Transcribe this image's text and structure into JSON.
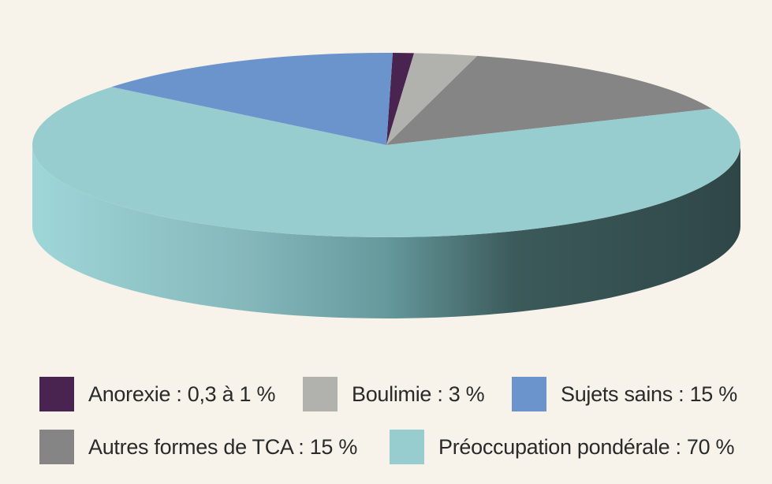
{
  "chart_data": {
    "type": "pie",
    "style": "3d",
    "title": "",
    "legend_placement": "bottom",
    "series": [
      {
        "name": "Anorexie : 0,3 à 1 %",
        "value": 1,
        "color": "#4a2450"
      },
      {
        "name": "Boulimie : 3 %",
        "value": 3,
        "color": "#b1b2ae"
      },
      {
        "name": "Autres formes de TCA : 15 %",
        "value": 15,
        "color": "#858585"
      },
      {
        "name": "Préoccupation pondérale : 70 %",
        "value": 70,
        "color": "#98cdd0"
      },
      {
        "name": "Sujets sains : 15 %",
        "value": 15,
        "color": "#6c94cc"
      }
    ]
  }
}
